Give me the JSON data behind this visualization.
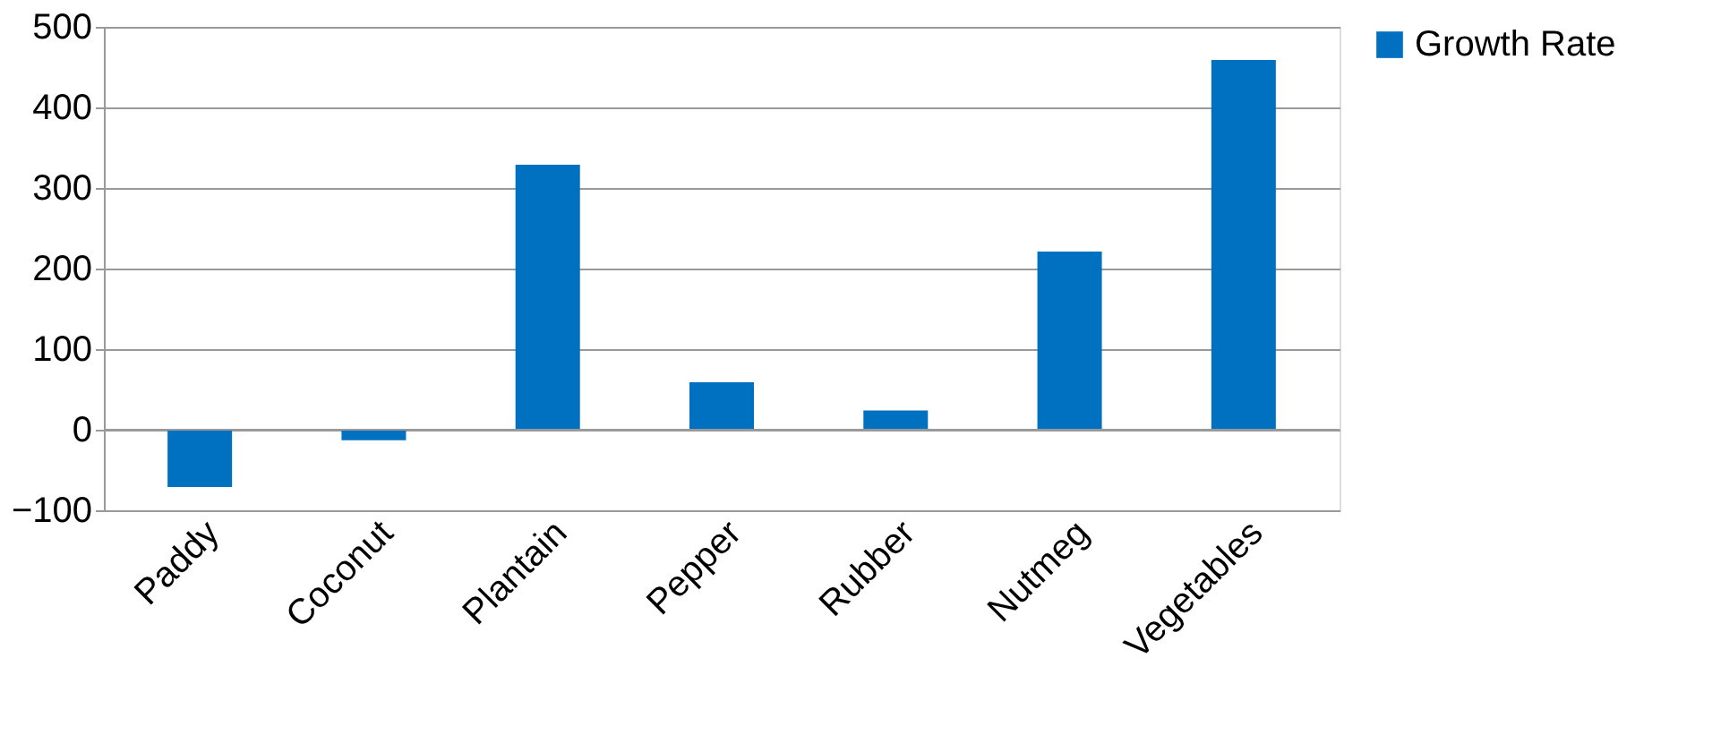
{
  "chart_data": {
    "type": "bar",
    "categories": [
      "Paddy",
      "Coconut",
      "Plantain",
      "Pepper",
      "Rubber",
      "Nutmeg",
      "Vegetables"
    ],
    "series": [
      {
        "name": "Growth Rate",
        "color": "#0070c0",
        "values": [
          -71,
          -13,
          329,
          59,
          24,
          221,
          459
        ]
      }
    ],
    "ylim": [
      -100,
      500
    ],
    "yticks": [
      -100,
      0,
      100,
      200,
      300,
      400,
      500
    ],
    "grid": "y",
    "legend": "right"
  }
}
